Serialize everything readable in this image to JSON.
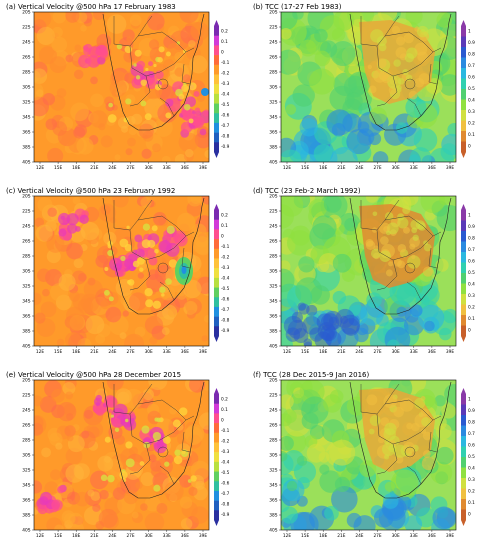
{
  "figure": {
    "lat_ticks": [
      "20S",
      "22S",
      "24S",
      "26S",
      "28S",
      "30S",
      "32S",
      "34S",
      "36S",
      "38S",
      "40S"
    ],
    "lon_ticks": [
      "12E",
      "15E",
      "18E",
      "21E",
      "24E",
      "27E",
      "30E",
      "33E",
      "36E",
      "39E"
    ],
    "panels": [
      {
        "id": "a",
        "label": "(a)",
        "title": "Vertical Velocity @500 hPa 17 February 1983",
        "variable": "vertical-velocity",
        "colorbar_ticks": [
          "0.2",
          "0.1",
          "0",
          "-0.1",
          "-0.2",
          "-0.3",
          "-0.4",
          "-0.5",
          "-0.6",
          "-0.7",
          "-0.8",
          "-0.9"
        ],
        "colorbar_colors": [
          "#7a2ab0",
          "#d23ad8",
          "#ff4f8e",
          "#ff6a3a",
          "#ff9a2a",
          "#ffc23a",
          "#f0e040",
          "#b8e040",
          "#60d060",
          "#30c0a0",
          "#2090e0",
          "#2060c0",
          "#2a30a0"
        ]
      },
      {
        "id": "b",
        "label": "(b)",
        "title": "TCC (17-27 Feb 1983)",
        "variable": "total-cloud-cover",
        "colorbar_ticks": [
          "1",
          "0.9",
          "0.8",
          "0.7",
          "0.6",
          "0.5",
          "0.4",
          "0.3",
          "0.2",
          "0.1",
          "0"
        ],
        "colorbar_colors": [
          "#8a3aa8",
          "#5a3ab8",
          "#2a5ad0",
          "#2a8ae0",
          "#2ab8e0",
          "#30d0b0",
          "#50d070",
          "#90e040",
          "#d0e040",
          "#f0c040",
          "#e08a30",
          "#c8602a"
        ]
      },
      {
        "id": "c",
        "label": "(c)",
        "title": "Vertical Velocity @500 hPa 23 February 1992",
        "variable": "vertical-velocity",
        "colorbar_ticks": [
          "0.2",
          "0.1",
          "0",
          "-0.1",
          "-0.2",
          "-0.3",
          "-0.4",
          "-0.5",
          "-0.6",
          "-0.7",
          "-0.8",
          "-0.9"
        ],
        "colorbar_colors": [
          "#7a2ab0",
          "#d23ad8",
          "#ff4f8e",
          "#ff6a3a",
          "#ff9a2a",
          "#ffc23a",
          "#f0e040",
          "#b8e040",
          "#60d060",
          "#30c0a0",
          "#2090e0",
          "#2060c0",
          "#2a30a0"
        ]
      },
      {
        "id": "d",
        "label": "(d)",
        "title": "TCC (23 Feb-2 March 1992)",
        "variable": "total-cloud-cover",
        "colorbar_ticks": [
          "1",
          "0.9",
          "0.8",
          "0.7",
          "0.6",
          "0.5",
          "0.4",
          "0.3",
          "0.2",
          "0.1",
          "0"
        ],
        "colorbar_colors": [
          "#8a3aa8",
          "#5a3ab8",
          "#2a5ad0",
          "#2a8ae0",
          "#2ab8e0",
          "#30d0b0",
          "#50d070",
          "#90e040",
          "#d0e040",
          "#f0c040",
          "#e08a30",
          "#c8602a"
        ]
      },
      {
        "id": "e",
        "label": "(e)",
        "title": "Vertical Velocity @500 hPa 28 December 2015",
        "variable": "vertical-velocity",
        "colorbar_ticks": [
          "0.2",
          "0.1",
          "0",
          "-0.1",
          "-0.2",
          "-0.3",
          "-0.4",
          "-0.5",
          "-0.6",
          "-0.7",
          "-0.8",
          "-0.9"
        ],
        "colorbar_colors": [
          "#7a2ab0",
          "#d23ad8",
          "#ff4f8e",
          "#ff6a3a",
          "#ff9a2a",
          "#ffc23a",
          "#f0e040",
          "#b8e040",
          "#60d060",
          "#30c0a0",
          "#2090e0",
          "#2060c0",
          "#2a30a0"
        ]
      },
      {
        "id": "f",
        "label": "(f)",
        "title": "TCC (28 Dec 2015-9 Jan 2016)",
        "variable": "total-cloud-cover",
        "colorbar_ticks": [
          "1",
          "0.9",
          "0.8",
          "0.7",
          "0.6",
          "0.5",
          "0.4",
          "0.3",
          "0.2",
          "0.1",
          "0"
        ],
        "colorbar_colors": [
          "#8a3aa8",
          "#5a3ab8",
          "#2a5ad0",
          "#2a8ae0",
          "#2ab8e0",
          "#30d0b0",
          "#50d070",
          "#90e040",
          "#d0e040",
          "#f0c040",
          "#e08a30",
          "#c8602a"
        ]
      }
    ]
  }
}
